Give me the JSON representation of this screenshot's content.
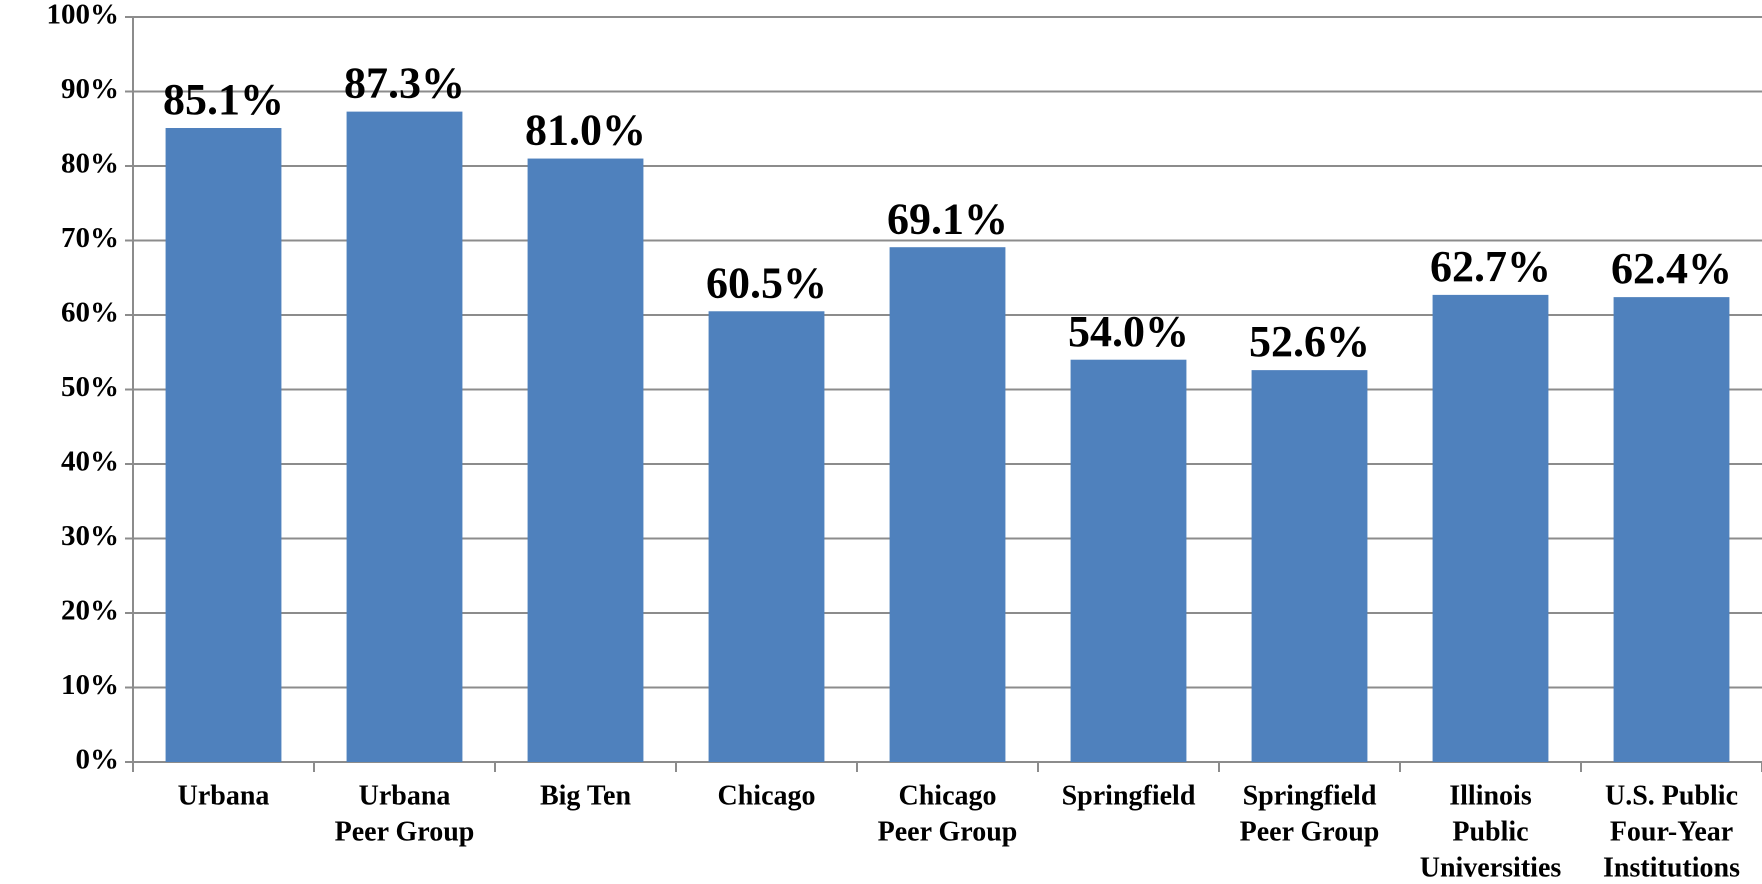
{
  "chart_data": {
    "type": "bar",
    "categories": [
      [
        "Urbana"
      ],
      [
        "Urbana",
        "Peer Group"
      ],
      [
        "Big Ten"
      ],
      [
        "Chicago"
      ],
      [
        "Chicago",
        "Peer Group"
      ],
      [
        "Springfield"
      ],
      [
        "Springfield",
        "Peer Group"
      ],
      [
        "Illinois",
        "Public",
        "Universities"
      ],
      [
        "U.S. Public",
        "Four-Year",
        "Institutions"
      ]
    ],
    "values": [
      85.1,
      87.3,
      81.0,
      60.5,
      69.1,
      54.0,
      52.6,
      62.7,
      62.4
    ],
    "value_labels": [
      "85.1%",
      "87.3%",
      "81.0%",
      "60.5%",
      "69.1%",
      "54.0%",
      "52.6%",
      "62.7%",
      "62.4%"
    ],
    "color": "#4f81bd",
    "ylim": [
      0,
      100
    ],
    "yticks": [
      {
        "value": 0,
        "label": "0%"
      },
      {
        "value": 10,
        "label": "10%"
      },
      {
        "value": 20,
        "label": "20%"
      },
      {
        "value": 30,
        "label": "30%"
      },
      {
        "value": 40,
        "label": "40%"
      },
      {
        "value": 50,
        "label": "50%"
      },
      {
        "value": 60,
        "label": "60%"
      },
      {
        "value": 70,
        "label": "70%"
      },
      {
        "value": 80,
        "label": "80%"
      },
      {
        "value": 90,
        "label": "90%"
      },
      {
        "value": 100,
        "label": "100%"
      }
    ],
    "grid": true
  }
}
